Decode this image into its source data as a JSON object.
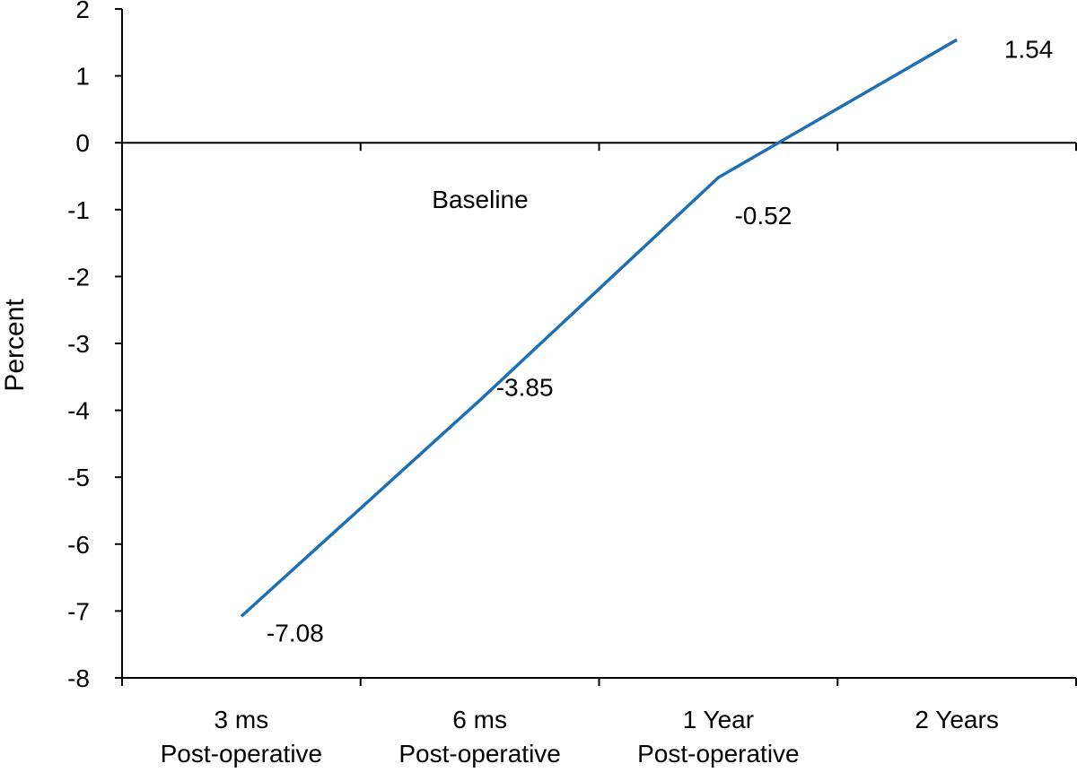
{
  "chart_data": {
    "type": "line",
    "categories": [
      [
        "3 ms",
        "Post-operative"
      ],
      [
        "6 ms",
        "Post-operative"
      ],
      [
        "1 Year",
        "Post-operative"
      ],
      [
        "2 Years"
      ]
    ],
    "values": [
      -7.08,
      -3.85,
      -0.52,
      1.54
    ],
    "data_labels": [
      "-7.08",
      "-3.85",
      "-0.52",
      "1.54"
    ],
    "ylabel": "Percent",
    "baseline_label": "Baseline",
    "ylim": [
      -8,
      2
    ],
    "yticks": [
      2,
      1,
      0,
      -1,
      -2,
      -3,
      -4,
      -5,
      -6,
      -7,
      -8
    ],
    "line_color": "#1f6fb5",
    "grid": false
  }
}
